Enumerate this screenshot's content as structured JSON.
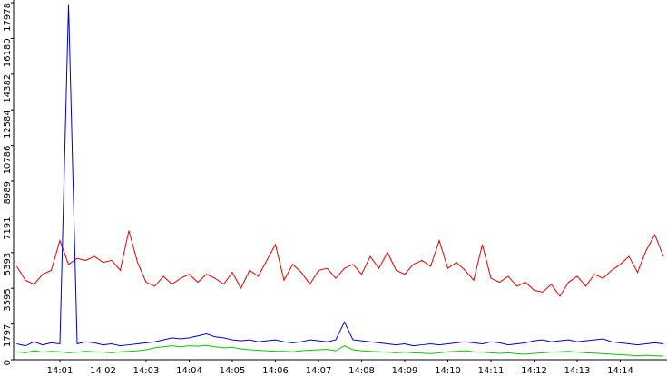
{
  "chart_data": {
    "type": "line",
    "categories": [
      null,
      null,
      null,
      null,
      null,
      "14:01",
      null,
      null,
      null,
      null,
      "14:02",
      null,
      null,
      null,
      null,
      "14:03",
      null,
      null,
      null,
      null,
      "14:04",
      null,
      null,
      null,
      null,
      "14:05",
      null,
      null,
      null,
      null,
      "14:06",
      null,
      null,
      null,
      null,
      "14:07",
      null,
      null,
      null,
      null,
      "14:08",
      null,
      null,
      null,
      null,
      "14:09",
      null,
      null,
      null,
      null,
      "14:10",
      null,
      null,
      null,
      null,
      "14:11",
      null,
      null,
      null,
      null,
      "14:12",
      null,
      null,
      null,
      null,
      "14:13",
      null,
      null,
      null,
      null,
      "14:14",
      null,
      null,
      null,
      null,
      null
    ],
    "series": [
      {
        "color": "#e00000",
        "values": [
          4700,
          4000,
          3800,
          4300,
          4500,
          6000,
          4800,
          5100,
          5000,
          5200,
          4900,
          5000,
          4500,
          6500,
          4900,
          3900,
          3700,
          4200,
          3800,
          4100,
          4300,
          3900,
          4300,
          4100,
          3800,
          4400,
          3600,
          4500,
          4200,
          5000,
          5800,
          4000,
          4800,
          4400,
          3800,
          4500,
          4600,
          4100,
          4600,
          4800,
          4300,
          5200,
          4600,
          5400,
          4500,
          4300,
          4800,
          5000,
          4700,
          6000,
          4600,
          4900,
          4500,
          4000,
          5800,
          4100,
          3900,
          4200,
          3700,
          3900,
          3500,
          3400,
          3800,
          3200,
          3900,
          4200,
          3700,
          4300,
          4100,
          4500,
          4800,
          5200,
          4400,
          5500,
          6300,
          5200
        ]
      },
      {
        "color": "#0000cc",
        "values": [
          800,
          700,
          900,
          750,
          850,
          800,
          17900,
          800,
          900,
          850,
          750,
          800,
          700,
          750,
          800,
          850,
          900,
          1000,
          1100,
          1050,
          1100,
          1200,
          1300,
          1150,
          1100,
          1000,
          950,
          1000,
          900,
          950,
          1000,
          900,
          850,
          900,
          1000,
          950,
          900,
          1000,
          1900,
          1000,
          950,
          900,
          850,
          800,
          750,
          800,
          700,
          750,
          800,
          750,
          800,
          850,
          900,
          850,
          800,
          900,
          850,
          750,
          800,
          850,
          950,
          1000,
          900,
          950,
          1000,
          900,
          950,
          1000,
          1050,
          900,
          850,
          800,
          750,
          800,
          850,
          800
        ]
      },
      {
        "color": "#00cc00",
        "values": [
          400,
          350,
          450,
          380,
          420,
          400,
          350,
          380,
          420,
          400,
          380,
          350,
          400,
          420,
          450,
          500,
          600,
          650,
          700,
          650,
          700,
          680,
          720,
          650,
          600,
          620,
          550,
          500,
          480,
          450,
          430,
          420,
          400,
          450,
          480,
          500,
          520,
          450,
          700,
          500,
          450,
          420,
          400,
          380,
          350,
          380,
          350,
          330,
          300,
          350,
          400,
          420,
          450,
          400,
          380,
          350,
          320,
          350,
          300,
          280,
          320,
          350,
          380,
          400,
          420,
          380,
          350,
          330,
          300,
          280,
          250,
          230,
          200,
          220,
          200,
          180
        ]
      }
    ],
    "ylim": [
      0,
      17978
    ],
    "yticks": [
      0,
      1797,
      3595,
      5393,
      7191,
      8989,
      10786,
      12584,
      14382,
      16180,
      17978
    ]
  }
}
